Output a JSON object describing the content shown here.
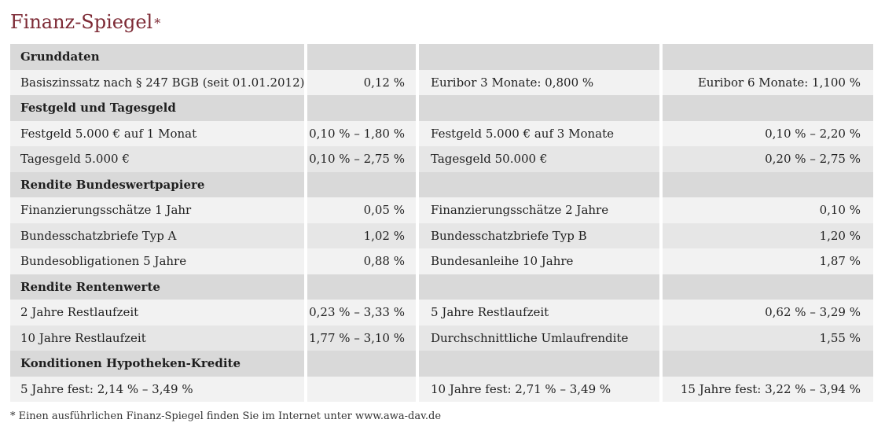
{
  "title": "Finanz-Spiegel",
  "title_mark": "*",
  "rows": [
    {
      "type": "hdr",
      "cells": [
        "Grunddaten",
        "",
        "",
        ""
      ]
    },
    {
      "type": "light",
      "cells": [
        "Basiszinssatz nach § 247 BGB (seit 01.01.2012)",
        "0,12 %",
        "Euribor 3 Monate: 0,800 %",
        "Euribor 6 Monate: 1,100 %"
      ]
    },
    {
      "type": "hdr",
      "cells": [
        "Festgeld und Tagesgeld",
        "",
        "",
        ""
      ]
    },
    {
      "type": "light",
      "cells": [
        "Festgeld 5.000 € auf 1 Monat",
        "0,10 % – 1,80 %",
        "Festgeld 5.000 € auf 3 Monate",
        "0,10 % – 2,20 %"
      ]
    },
    {
      "type": "dark",
      "cells": [
        "Tagesgeld 5.000 €",
        "0,10 % – 2,75 %",
        "Tagesgeld 50.000 €",
        "0,20 % – 2,75 %"
      ]
    },
    {
      "type": "hdr",
      "cells": [
        "Rendite Bundeswertpapiere",
        "",
        "",
        ""
      ]
    },
    {
      "type": "light",
      "cells": [
        "Finanzierungsschätze 1 Jahr",
        "0,05 %",
        "Finanzierungsschätze 2 Jahre",
        "0,10 %"
      ]
    },
    {
      "type": "dark",
      "cells": [
        "Bundesschatzbriefe Typ A",
        "1,02 %",
        "Bundesschatzbriefe Typ B",
        "1,20 %"
      ]
    },
    {
      "type": "light",
      "cells": [
        "Bundesobligationen 5 Jahre",
        "0,88 %",
        "Bundesanleihe 10 Jahre",
        "1,87 %"
      ]
    },
    {
      "type": "hdr",
      "cells": [
        "Rendite Rentenwerte",
        "",
        "",
        ""
      ]
    },
    {
      "type": "light",
      "cells": [
        "2 Jahre Restlaufzeit",
        "0,23 % – 3,33 %",
        "5 Jahre Restlaufzeit",
        "0,62 % – 3,29 %"
      ]
    },
    {
      "type": "dark",
      "cells": [
        "10 Jahre Restlaufzeit",
        "1,77 % – 3,10 %",
        "Durchschnittliche Umlaufrendite",
        "1,55 %"
      ]
    },
    {
      "type": "hdr",
      "cells": [
        "Konditionen Hypotheken-Kredite",
        "",
        "",
        ""
      ]
    },
    {
      "type": "light",
      "cells": [
        "5 Jahre fest: 2,14 % – 3,49 %",
        "",
        "10 Jahre fest: 2,71 % – 3,49 %",
        "15 Jahre fest: 3,22 % – 3,94 %"
      ]
    }
  ],
  "footnote": "* Einen ausführlichen Finanz-Spiegel finden Sie im Internet unter www.awa-dav.de"
}
